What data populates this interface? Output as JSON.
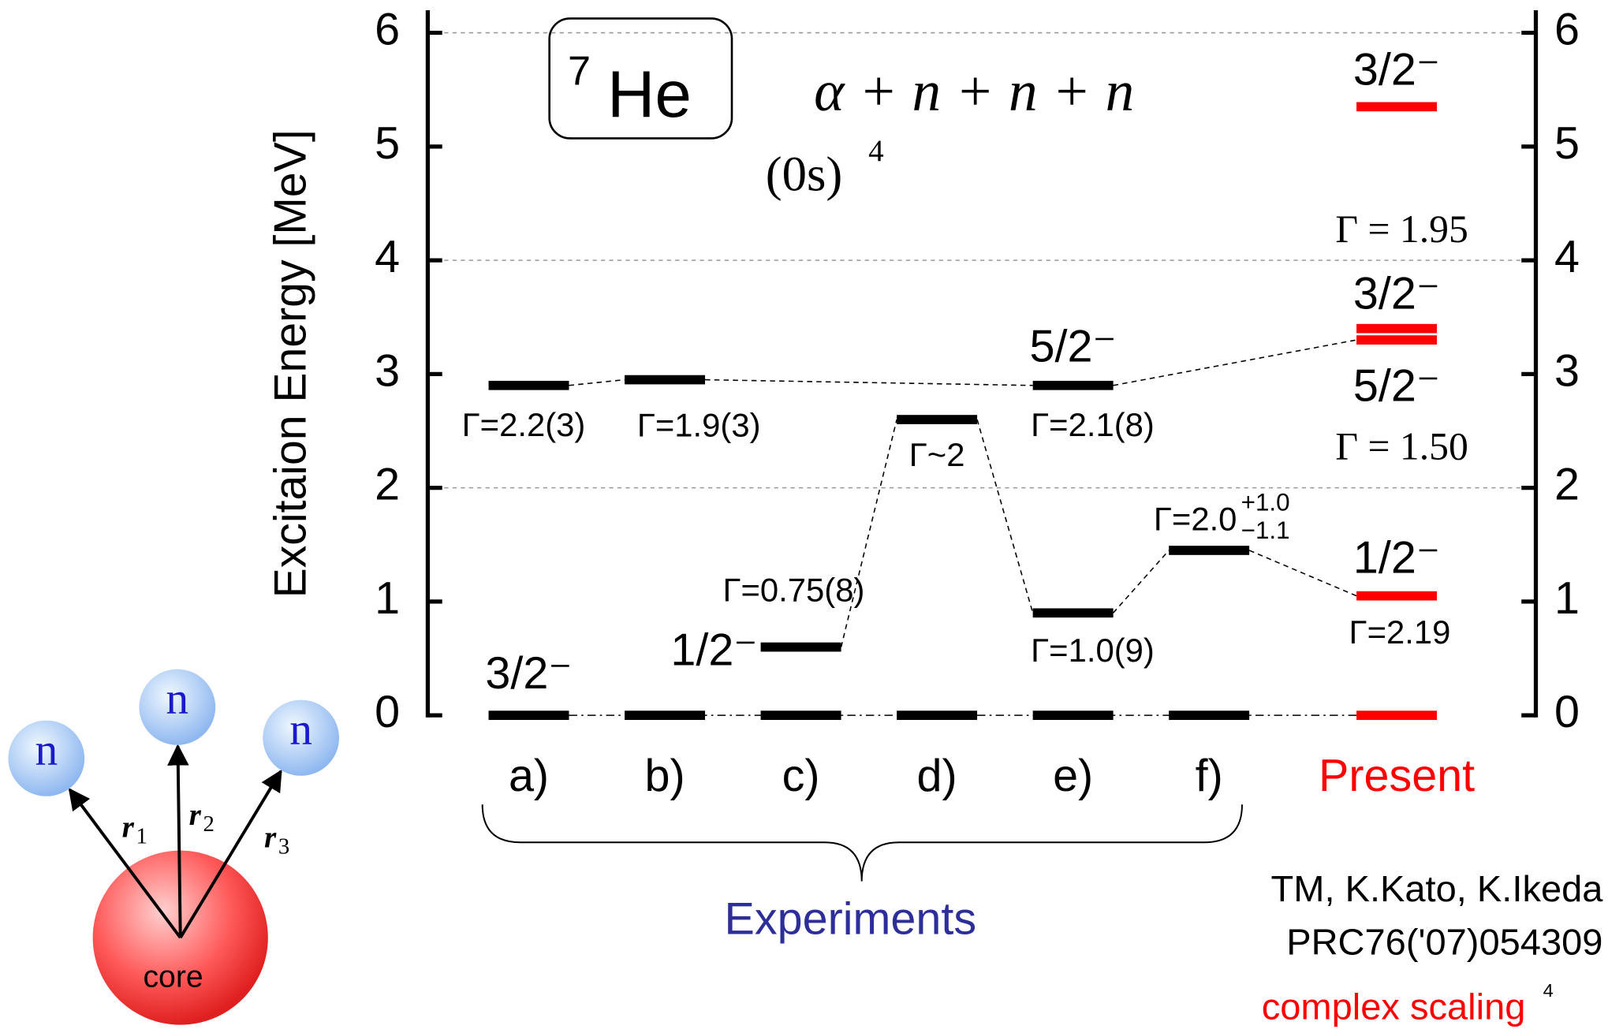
{
  "chart_data": {
    "type": "level",
    "ylabel": "Excitaion Energy [MeV]",
    "ylim": [
      0,
      6
    ],
    "yticks": [
      0,
      1,
      2,
      3,
      4,
      5,
      6
    ],
    "grid": true,
    "columns": [
      {
        "label": "a)",
        "color": "#000000",
        "levels": [
          0,
          2.9
        ],
        "spins": [
          "3/2⁻",
          null
        ],
        "widths": [
          null,
          "Γ=2.2(3)"
        ]
      },
      {
        "label": "b)",
        "color": "#000000",
        "levels": [
          0,
          2.95
        ],
        "spins": [
          null,
          null
        ],
        "widths": [
          null,
          "Γ=1.9(3)"
        ]
      },
      {
        "label": "c)",
        "color": "#000000",
        "levels": [
          0,
          0.6
        ],
        "spins": [
          null,
          "1/2⁻"
        ],
        "widths": [
          null,
          "Γ=0.75(8)"
        ]
      },
      {
        "label": "d)",
        "color": "#000000",
        "levels": [
          0,
          2.6
        ],
        "spins": [
          null,
          null
        ],
        "widths": [
          null,
          "Γ~2"
        ]
      },
      {
        "label": "e)",
        "color": "#000000",
        "levels": [
          0,
          0.9,
          2.9
        ],
        "spins": [
          null,
          null,
          "5/2⁻"
        ],
        "widths": [
          null,
          "Γ=1.0(9)",
          "Γ=2.1(8)"
        ]
      },
      {
        "label": "f)",
        "color": "#000000",
        "levels": [
          0,
          1.45
        ],
        "spins": [
          null,
          null
        ],
        "widths": [
          null,
          "Γ=2.0"
        ],
        "width_error": {
          "plus": "+1.0",
          "minus": "−1.1"
        }
      },
      {
        "label": "Present",
        "color": "#ff0000",
        "levels": [
          0,
          1.05,
          3.3,
          3.4,
          5.35
        ],
        "spins": [
          null,
          "1/2⁻",
          "5/2⁻",
          "3/2⁻",
          "3/2⁻"
        ],
        "widths": [
          null,
          "Γ=2.19",
          "Γ = 1.50",
          "Γ = 1.95",
          null
        ]
      }
    ],
    "group_label": "Experiments"
  },
  "header": {
    "nucleus_mass": "7",
    "nucleus": "He",
    "model": "α + n + n + n",
    "config": "(0s)",
    "config_power": "4"
  },
  "reference": {
    "authors": "TM, K.Kato, K.Ikeda",
    "journal": "PRC76('07)054309",
    "method": "complex scaling",
    "page": "4"
  },
  "diagram": {
    "neutrons": [
      "n",
      "n",
      "n"
    ],
    "vectors": [
      {
        "symbol": "r",
        "index": "1"
      },
      {
        "symbol": "r",
        "index": "2"
      },
      {
        "symbol": "r",
        "index": "3"
      }
    ],
    "core": "core"
  }
}
